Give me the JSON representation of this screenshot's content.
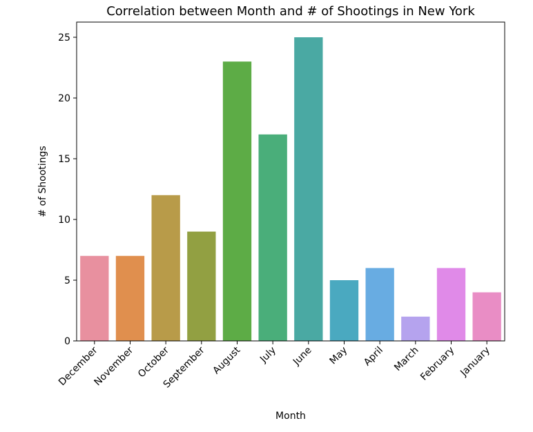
{
  "chart_data": {
    "type": "bar",
    "title": "Correlation between Month and # of Shootings in New York",
    "xlabel": "Month",
    "ylabel": "# of Shootings",
    "categories": [
      "December",
      "November",
      "October",
      "September",
      "August",
      "July",
      "June",
      "May",
      "April",
      "March",
      "February",
      "January"
    ],
    "values": [
      7,
      7,
      12,
      9,
      23,
      17,
      25,
      5,
      6,
      2,
      6,
      4
    ],
    "colors": [
      "#e8909f",
      "#e08f4e",
      "#b89b49",
      "#92a042",
      "#5dac46",
      "#4aae7a",
      "#4aa9a3",
      "#4aa9c0",
      "#68ace2",
      "#b5a3ee",
      "#e08ae8",
      "#e98dc5"
    ],
    "ylim": [
      0,
      26.25
    ],
    "yticks": [
      0,
      5,
      10,
      15,
      20,
      25
    ],
    "grid": false
  }
}
